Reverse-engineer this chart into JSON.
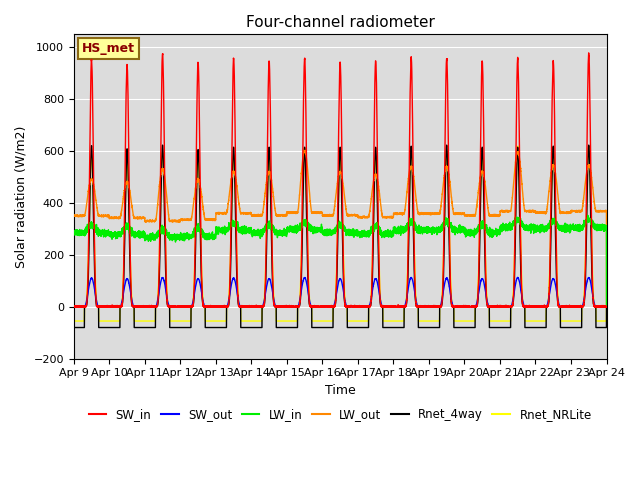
{
  "title": "Four-channel radiometer",
  "xlabel": "Time",
  "ylabel": "Solar radiation (W/m2)",
  "ylim": [
    -200,
    1050
  ],
  "xlim": [
    0,
    15
  ],
  "background_color": "#dcdcdc",
  "annotation_text": "HS_met",
  "annotation_color": "#8b0000",
  "annotation_bg": "#ffff99",
  "annotation_border": "#8b6914",
  "x_tick_labels": [
    "Apr 9",
    "Apr 10",
    "Apr 11",
    "Apr 12",
    "Apr 13",
    "Apr 14",
    "Apr 15",
    "Apr 16",
    "Apr 17",
    "Apr 18",
    "Apr 19",
    "Apr 20",
    "Apr 21",
    "Apr 22",
    "Apr 23",
    "Apr 24"
  ],
  "series": {
    "SW_in": {
      "color": "#ff0000",
      "lw": 1.0
    },
    "SW_out": {
      "color": "#0000ff",
      "lw": 1.0
    },
    "LW_in": {
      "color": "#00ee00",
      "lw": 1.0
    },
    "LW_out": {
      "color": "#ff8800",
      "lw": 1.0
    },
    "Rnet_4way": {
      "color": "#000000",
      "lw": 1.0
    },
    "Rnet_NRLite": {
      "color": "#ffff00",
      "lw": 1.0
    }
  },
  "day_start": 0.3,
  "day_end": 0.7,
  "n_days": 15,
  "SW_in_peaks": [
    950,
    930,
    975,
    940,
    955,
    945,
    955,
    940,
    945,
    960,
    955,
    945,
    955,
    945,
    975
  ],
  "SW_out_peaks": [
    110,
    108,
    112,
    108,
    110,
    108,
    112,
    108,
    108,
    112,
    110,
    108,
    112,
    108,
    112
  ],
  "LW_in_bases": [
    285,
    278,
    268,
    270,
    295,
    285,
    298,
    285,
    280,
    295,
    295,
    285,
    305,
    300,
    305
  ],
  "LW_in_peaks": [
    315,
    310,
    300,
    300,
    320,
    315,
    325,
    315,
    310,
    325,
    325,
    315,
    335,
    330,
    335
  ],
  "LW_out_bases": [
    350,
    342,
    330,
    335,
    360,
    352,
    362,
    352,
    345,
    358,
    358,
    352,
    368,
    362,
    368
  ],
  "LW_out_peaks": [
    490,
    480,
    530,
    490,
    520,
    520,
    600,
    520,
    510,
    540,
    540,
    520,
    595,
    545,
    545
  ],
  "Rnet_4way_peaks": [
    620,
    608,
    622,
    605,
    614,
    614,
    614,
    614,
    614,
    618,
    622,
    614,
    614,
    618,
    622
  ],
  "Rnet_4way_night": -80,
  "Rnet_NRL_peaks": [
    580,
    568,
    595,
    572,
    582,
    582,
    612,
    582,
    578,
    600,
    600,
    582,
    618,
    600,
    618
  ],
  "Rnet_NRL_night": -55
}
